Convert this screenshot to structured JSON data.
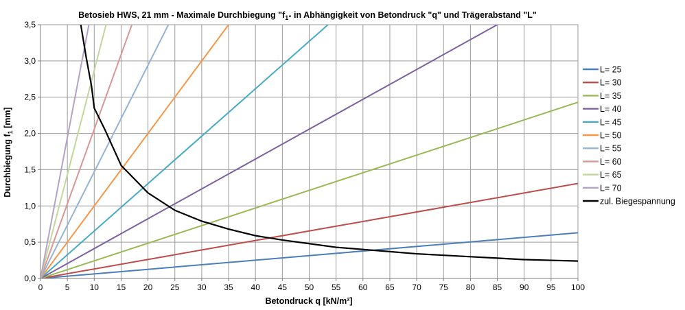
{
  "chart_data": {
    "type": "line",
    "title": "Betosieb HWS, 21 mm - Maximale Durchbiegung \"f1\" in Abhängigkeit von Betondruck \"q\" und Trägerabstand \"L\"",
    "title_parts": {
      "before": "Betosieb HWS, 21 mm - Maximale Durchbiegung  \"f",
      "sub": "1\"",
      "after": " in Abhängigkeit von Betondruck \"q\" und Trägerabstand \"L\""
    },
    "xlabel": "Betondruck q [kN/m²]",
    "ylabel": "Durchbiegung f1 [mm]",
    "ylabel_parts": {
      "before": "Durchbiegung  f",
      "sub": "1",
      "after": " [mm]"
    },
    "xlim": [
      0,
      100
    ],
    "ylim": [
      0,
      3.5
    ],
    "x_ticks": [
      0,
      5,
      10,
      15,
      20,
      25,
      30,
      35,
      40,
      45,
      50,
      55,
      60,
      65,
      70,
      75,
      80,
      85,
      90,
      95,
      100
    ],
    "y_ticks": [
      0,
      0.5,
      1.0,
      1.5,
      2.0,
      2.5,
      3.0,
      3.5
    ],
    "y_tick_labels": [
      "0,0",
      "0,5",
      "1,0",
      "1,5",
      "2,0",
      "2,5",
      "3,0",
      "3,5"
    ],
    "grid": true,
    "legend_position": "right",
    "series": [
      {
        "name": "L= 25",
        "color": "#4A7EBB",
        "x": [
          0,
          100
        ],
        "y": [
          0,
          0.63
        ]
      },
      {
        "name": "L= 30",
        "color": "#BE4B48",
        "x": [
          0,
          100
        ],
        "y": [
          0,
          1.31
        ]
      },
      {
        "name": "L= 35",
        "color": "#98B954",
        "x": [
          0,
          100
        ],
        "y": [
          0,
          2.43
        ]
      },
      {
        "name": "L= 40",
        "color": "#7D60A0",
        "x": [
          0,
          85
        ],
        "y": [
          0,
          3.5
        ]
      },
      {
        "name": "L= 45",
        "color": "#46AAC5",
        "x": [
          0,
          53.5
        ],
        "y": [
          0,
          3.5
        ]
      },
      {
        "name": "L= 50",
        "color": "#F79646",
        "x": [
          0,
          35
        ],
        "y": [
          0,
          3.5
        ]
      },
      {
        "name": "L= 55",
        "color": "#95B3D7",
        "x": [
          0,
          23.8
        ],
        "y": [
          0,
          3.5
        ]
      },
      {
        "name": "L= 60",
        "color": "#D99694",
        "x": [
          0,
          17
        ],
        "y": [
          0,
          3.5
        ]
      },
      {
        "name": "L= 65",
        "color": "#C3D69B",
        "x": [
          0,
          12.2
        ],
        "y": [
          0,
          3.5
        ]
      },
      {
        "name": "L= 70",
        "color": "#B3A2C7",
        "x": [
          0,
          9
        ],
        "y": [
          0,
          3.5
        ]
      },
      {
        "name": "zul. Biegespannung",
        "color": "#000000",
        "x": [
          7.5,
          8.5,
          9.5,
          10,
          12,
          15,
          20,
          25,
          30,
          35,
          40,
          45,
          50,
          55,
          60,
          65,
          70,
          75,
          80,
          85,
          90,
          95,
          100
        ],
        "y": [
          3.5,
          3.05,
          2.65,
          2.35,
          2.05,
          1.56,
          1.18,
          0.94,
          0.79,
          0.68,
          0.59,
          0.53,
          0.48,
          0.43,
          0.4,
          0.37,
          0.34,
          0.32,
          0.3,
          0.28,
          0.26,
          0.25,
          0.24
        ]
      }
    ]
  }
}
